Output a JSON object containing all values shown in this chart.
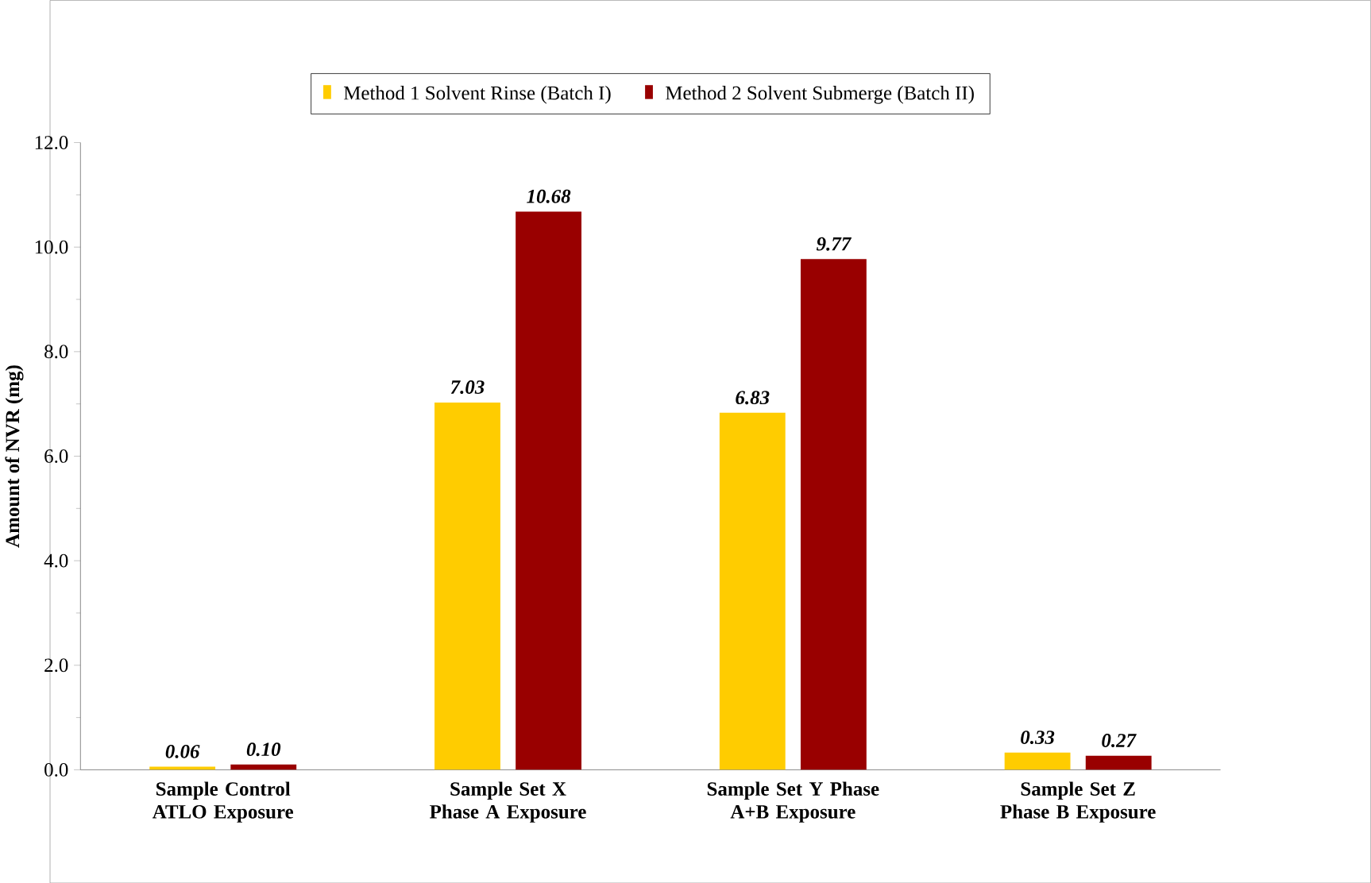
{
  "chart_data": {
    "type": "bar",
    "categories": [
      "Sample Control ATLO Exposure",
      "Sample Set X Phase A Exposure",
      "Sample Set Y Phase A+B Exposure",
      "Sample Set Z Phase B Exposure"
    ],
    "ylabel": "Amount of NVR (mg)",
    "series": [
      {
        "name": "Method 1 Solvent Rinse (Batch I)",
        "color": "#ffcc00",
        "values": [
          0.06,
          7.03,
          6.83,
          0.33
        ],
        "value_labels": [
          "0.06",
          "7.03",
          "6.83",
          "0.33"
        ]
      },
      {
        "name": "Method 2 Solvent Submerge (Batch II)",
        "color": "#990000",
        "values": [
          0.1,
          10.68,
          9.77,
          0.27
        ],
        "value_labels": [
          "0.10",
          "10.68",
          "9.77",
          "0.27"
        ]
      }
    ],
    "ylim": [
      0,
      12
    ],
    "yticks": [
      {
        "value": 0,
        "label": "0.0"
      },
      {
        "value": 2,
        "label": "2.0"
      },
      {
        "value": 4,
        "label": "4.0"
      },
      {
        "value": 6,
        "label": "6.0"
      },
      {
        "value": 8,
        "label": "8.0"
      },
      {
        "value": 10,
        "label": "10.0"
      },
      {
        "value": 12,
        "label": "12.0"
      }
    ],
    "legend": "top",
    "grid": false
  }
}
